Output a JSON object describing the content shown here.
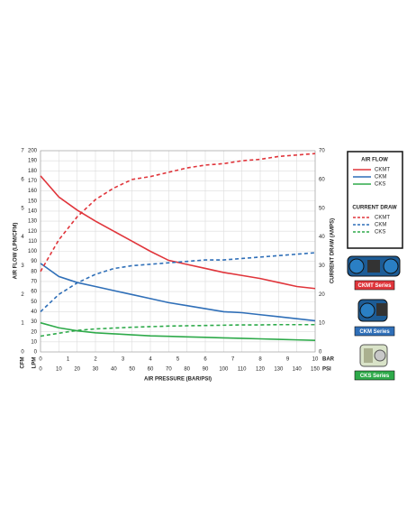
{
  "chart_data": {
    "type": "line",
    "x_label": "AIR PRESSURE (BAR/PSI)",
    "y_label": "AIR FLOW (LPM/CFM)",
    "y2_label": "CURRENT DRAW (AMPS)",
    "x_unit": "PSI",
    "x2_unit": "BAR",
    "y_unit": "LPM",
    "y3_unit": "CFM",
    "x": [
      0,
      10,
      20,
      30,
      40,
      50,
      60,
      70,
      80,
      90,
      100,
      110,
      120,
      130,
      140,
      150
    ],
    "xlim": [
      0,
      150
    ],
    "xticks": [
      0,
      10,
      20,
      30,
      40,
      50,
      60,
      70,
      80,
      90,
      100,
      110,
      120,
      130,
      140,
      150
    ],
    "x2lim": [
      0,
      10
    ],
    "x2ticks": [
      0,
      1,
      2,
      3,
      4,
      5,
      6,
      7,
      8,
      9,
      10
    ],
    "ylim": [
      0,
      200
    ],
    "yticks": [
      0,
      10,
      20,
      30,
      40,
      50,
      60,
      70,
      80,
      90,
      100,
      110,
      120,
      130,
      140,
      150,
      160,
      170,
      180,
      190,
      200
    ],
    "y3lim": [
      0,
      7
    ],
    "y3ticks": [
      0,
      1,
      2,
      3,
      4,
      5,
      6,
      7
    ],
    "y2lim": [
      0,
      70
    ],
    "y2ticks": [
      0,
      10,
      20,
      30,
      40,
      50,
      60,
      70
    ],
    "grid": true,
    "legend_titles": [
      "AIR FLOW",
      "CURRENT DRAW"
    ],
    "series": [
      {
        "name": "CKMT",
        "color": "#e0353b",
        "linestyle": "solid",
        "values": [
          175,
          154,
          141,
          130,
          120,
          110,
          100,
          91,
          87,
          83,
          79,
          76,
          73,
          69,
          65,
          63
        ]
      },
      {
        "name": "CKM",
        "color": "#2f6fb8",
        "linestyle": "solid",
        "values": [
          88,
          75,
          69,
          65,
          61,
          57,
          53,
          49,
          46,
          43,
          40,
          39,
          37,
          35,
          33,
          31
        ]
      },
      {
        "name": "CKS",
        "color": "#2eaa4a",
        "linestyle": "solid",
        "values": [
          29,
          24,
          21,
          19,
          18,
          17,
          16,
          15.5,
          15,
          14.5,
          14,
          13.5,
          13,
          12.5,
          12,
          11.5
        ]
      },
      {
        "name": "CKMT",
        "color": "#e0353b",
        "linestyle": "dashed",
        "axis": "y2",
        "values": [
          28,
          39,
          47,
          53,
          57,
          60,
          61,
          62.5,
          64,
          65,
          65.5,
          66.5,
          67,
          68,
          68.5,
          69
        ]
      },
      {
        "name": "CKM",
        "color": "#2f6fb8",
        "linestyle": "dashed",
        "axis": "y2",
        "values": [
          14,
          20,
          24,
          27,
          29,
          30,
          30.5,
          31,
          31.5,
          32,
          32,
          32.5,
          33,
          33.5,
          34,
          34.5
        ]
      },
      {
        "name": "CKS",
        "color": "#2eaa4a",
        "linestyle": "dashed",
        "axis": "y2",
        "values": [
          5.5,
          6.5,
          7.5,
          8,
          8.3,
          8.6,
          8.8,
          9,
          9.1,
          9.2,
          9.3,
          9.4,
          9.4,
          9.5,
          9.5,
          9.5
        ]
      }
    ],
    "annotations": [
      {
        "text": "CKMT Series",
        "color": "#e0353b"
      },
      {
        "text": "CKM Series",
        "color": "#2f6fb8"
      },
      {
        "text": "CKS Series",
        "color": "#2eaa4a"
      }
    ]
  }
}
